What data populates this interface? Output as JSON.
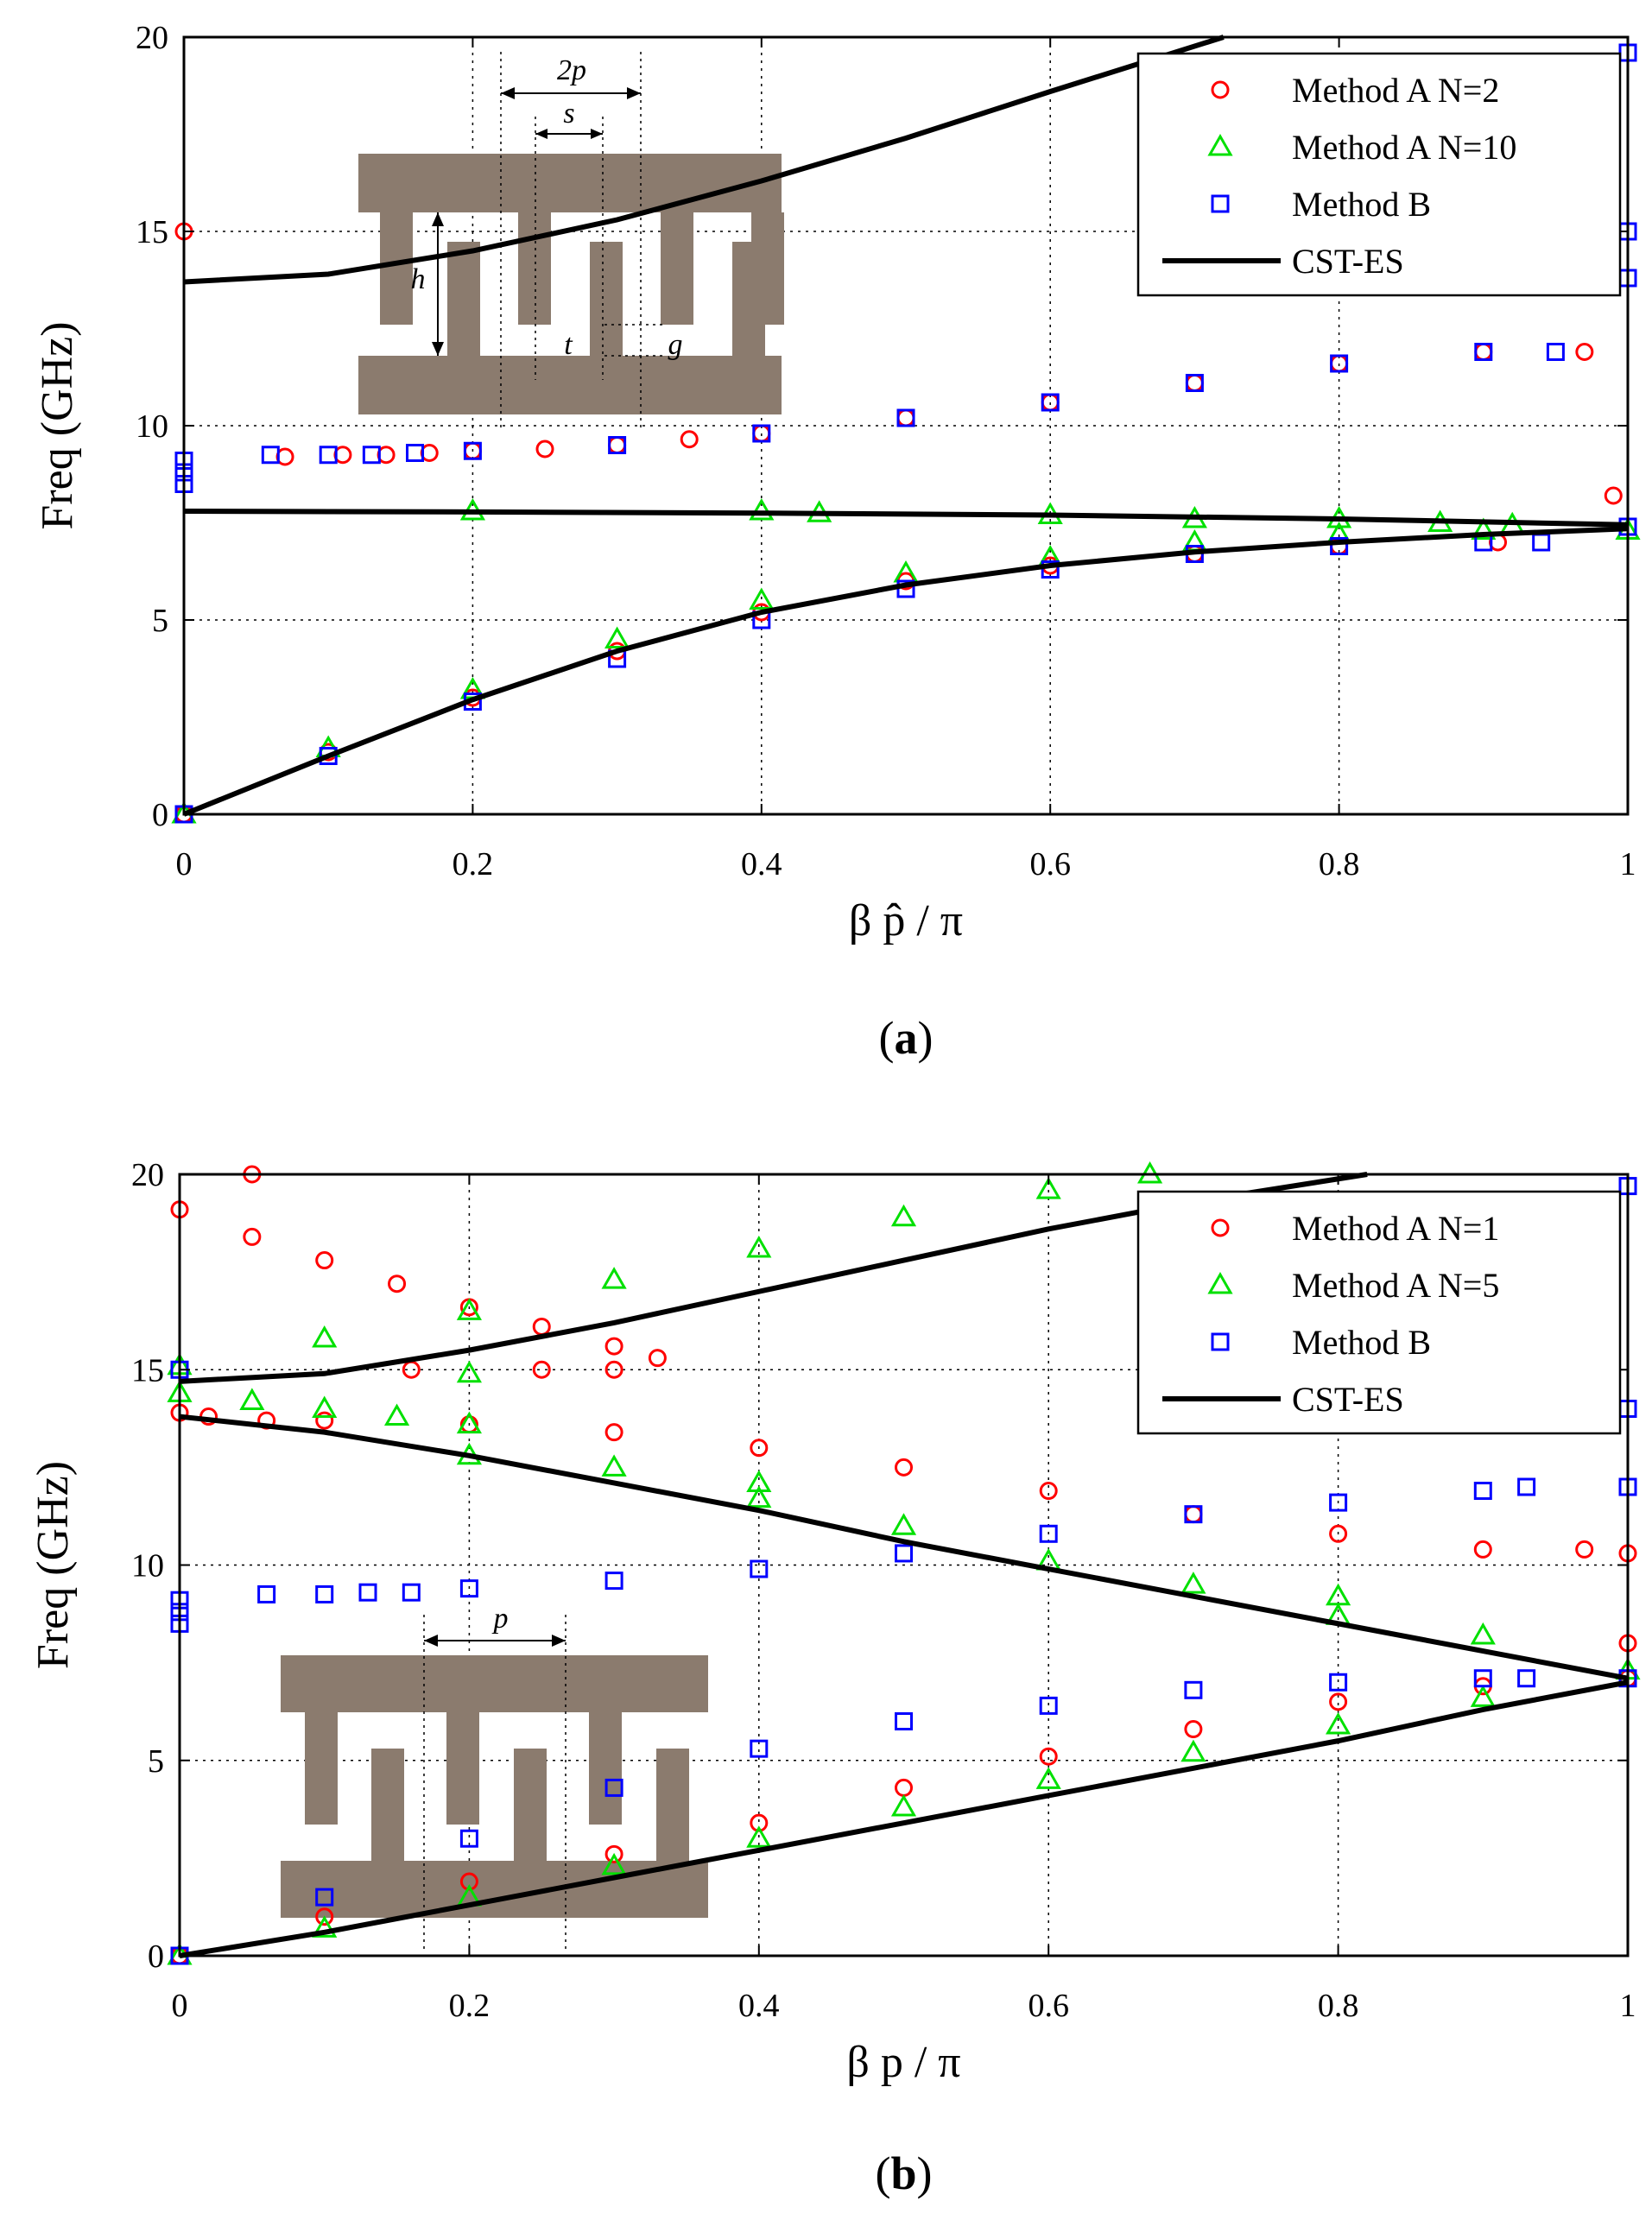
{
  "colors": {
    "method_a_1": "#ff0000",
    "method_a_2": "#00e000",
    "method_b": "#0000ff",
    "cst": "#000000",
    "structure": "#8b7b6e"
  },
  "chart_data": [
    {
      "type": "scatter",
      "panel": "a",
      "caption_label": "a",
      "xlabel": "β p̂ / π",
      "ylabel": "Freq (GHz)",
      "xlim": [
        0,
        1
      ],
      "ylim": [
        0,
        20
      ],
      "xticks": [
        0,
        0.2,
        0.4,
        0.6,
        0.8,
        1
      ],
      "xtick_labels": [
        "0",
        "0.2",
        "0.4",
        "0.6",
        "0.8",
        "1"
      ],
      "yticks": [
        0,
        5,
        10,
        15,
        20
      ],
      "ytick_labels": [
        "0",
        "5",
        "10",
        "15",
        "20"
      ],
      "grid": true,
      "legend_position": "top-right",
      "legend": [
        "Method A N=2",
        "Method A N=10",
        "Method B",
        "CST-ES"
      ],
      "inset_labels": {
        "period": "2p",
        "s": "s",
        "h": "h",
        "t": "t",
        "g": "g"
      },
      "series": [
        {
          "name": "Method A N=2",
          "marker": "circle",
          "color_key": "method_a_1",
          "x": [
            0.07,
            0.11,
            0.14,
            0.17,
            0.2,
            0.25,
            0.3,
            0.35,
            0.4,
            0.5,
            0.6,
            0.7,
            0.8,
            0.9,
            0.97,
            0.91,
            0.8,
            0.7,
            0.6,
            0.5,
            0.4,
            0.3,
            0.2,
            0.1,
            0.0,
            0.0,
            0.99
          ],
          "y": [
            9.2,
            9.25,
            9.25,
            9.3,
            9.35,
            9.4,
            9.5,
            9.65,
            9.8,
            10.2,
            10.6,
            11.1,
            11.6,
            11.9,
            11.9,
            7.0,
            6.9,
            6.7,
            6.4,
            6.0,
            5.2,
            4.2,
            3.0,
            1.6,
            0.0,
            15.0,
            8.2
          ]
        },
        {
          "name": "Method A N=10",
          "marker": "triangle",
          "color_key": "method_a_2",
          "x": [
            0.0,
            0.1,
            0.2,
            0.3,
            0.4,
            0.5,
            0.6,
            0.7,
            0.8,
            0.9,
            0.2,
            0.4,
            0.44,
            0.6,
            0.7,
            0.8,
            0.87,
            0.92,
            1.0
          ],
          "y": [
            0.0,
            1.7,
            3.2,
            4.5,
            5.5,
            6.2,
            6.6,
            7.0,
            7.2,
            7.3,
            7.8,
            7.8,
            7.75,
            7.7,
            7.6,
            7.6,
            7.5,
            7.45,
            7.3
          ]
        },
        {
          "name": "Method B",
          "marker": "square",
          "color_key": "method_b",
          "x": [
            0.0,
            0.0,
            0.0,
            0.06,
            0.1,
            0.13,
            0.16,
            0.2,
            0.3,
            0.4,
            0.5,
            0.6,
            0.7,
            0.8,
            0.9,
            0.95,
            0.0,
            0.1,
            0.2,
            0.3,
            0.4,
            0.5,
            0.6,
            0.7,
            0.8,
            0.9,
            0.94,
            1.0,
            1.0,
            1.0,
            1.0
          ],
          "y": [
            8.5,
            8.8,
            9.1,
            9.25,
            9.25,
            9.25,
            9.3,
            9.35,
            9.5,
            9.8,
            10.2,
            10.6,
            11.1,
            11.6,
            11.9,
            11.9,
            0.0,
            1.5,
            2.9,
            4.0,
            5.0,
            5.8,
            6.3,
            6.7,
            6.9,
            7.0,
            7.0,
            7.4,
            13.8,
            19.6,
            15.0
          ]
        },
        {
          "name": "CST-ES",
          "marker": "line",
          "color_key": "cst",
          "segments": [
            {
              "x": [
                0.0,
                0.1,
                0.2,
                0.3,
                0.4,
                0.5,
                0.6,
                0.72
              ],
              "y": [
                13.7,
                13.9,
                14.5,
                15.3,
                16.3,
                17.4,
                18.6,
                20.0
              ]
            },
            {
              "x": [
                0.0,
                0.2,
                0.4,
                0.6,
                0.8,
                1.0
              ],
              "y": [
                7.8,
                7.78,
                7.75,
                7.7,
                7.6,
                7.45
              ]
            },
            {
              "x": [
                0.0,
                0.1,
                0.2,
                0.3,
                0.4,
                0.5,
                0.6,
                0.7,
                0.8,
                0.9,
                1.0
              ],
              "y": [
                0.0,
                1.5,
                2.95,
                4.2,
                5.2,
                5.9,
                6.4,
                6.75,
                7.0,
                7.2,
                7.35
              ]
            }
          ]
        }
      ]
    },
    {
      "type": "scatter",
      "panel": "b",
      "caption_label": "b",
      "xlabel": "β p / π",
      "ylabel": "Freq (GHz)",
      "xlim": [
        0,
        1
      ],
      "ylim": [
        0,
        20
      ],
      "xticks": [
        0,
        0.2,
        0.4,
        0.6,
        0.8,
        1
      ],
      "xtick_labels": [
        "0",
        "0.2",
        "0.4",
        "0.6",
        "0.8",
        "1"
      ],
      "yticks": [
        0,
        5,
        10,
        15,
        20
      ],
      "ytick_labels": [
        "0",
        "5",
        "10",
        "15",
        "20"
      ],
      "grid": true,
      "legend_position": "top-right",
      "legend": [
        "Method A N=1",
        "Method A N=5",
        "Method B",
        "CST-ES"
      ],
      "inset_labels": {
        "period": "p"
      },
      "series": [
        {
          "name": "Method A N=1",
          "marker": "circle",
          "color_key": "method_a_1",
          "x": [
            0.05,
            0.0,
            0.05,
            0.1,
            0.15,
            0.2,
            0.25,
            0.3,
            0.33,
            0.3,
            0.25,
            0.16,
            0.0,
            0.02,
            0.06,
            0.1,
            0.2,
            0.3,
            0.4,
            0.5,
            0.6,
            0.7,
            0.8,
            0.9,
            0.97,
            1.0,
            1.0,
            0.0,
            0.1,
            0.2,
            0.3,
            0.4,
            0.5,
            0.6,
            0.7,
            0.8,
            0.9,
            1.0
          ],
          "y": [
            20.0,
            19.1,
            18.4,
            17.8,
            17.2,
            16.6,
            16.1,
            15.6,
            15.3,
            15.0,
            15.0,
            15.0,
            13.9,
            13.8,
            13.7,
            13.7,
            13.6,
            13.4,
            13.0,
            12.5,
            11.9,
            11.3,
            10.8,
            10.4,
            10.4,
            10.3,
            8.0,
            0.0,
            1.0,
            1.9,
            2.6,
            3.4,
            4.3,
            5.1,
            5.8,
            6.5,
            6.9,
            7.1
          ]
        },
        {
          "name": "Method A N=5",
          "marker": "triangle",
          "color_key": "method_a_2",
          "x": [
            0.0,
            0.1,
            0.2,
            0.3,
            0.4,
            0.5,
            0.6,
            0.67,
            0.0,
            0.05,
            0.1,
            0.15,
            0.2,
            0.2,
            0.2,
            0.3,
            0.4,
            0.4,
            0.5,
            0.6,
            0.7,
            0.8,
            0.8,
            0.9,
            1.0,
            0.0,
            0.1,
            0.2,
            0.3,
            0.4,
            0.5,
            0.6,
            0.7,
            0.8,
            0.9
          ],
          "y": [
            15.1,
            15.8,
            16.5,
            17.3,
            18.1,
            18.9,
            19.6,
            20.0,
            14.4,
            14.2,
            14.0,
            13.8,
            13.6,
            14.9,
            12.8,
            12.5,
            12.1,
            11.7,
            11.0,
            10.1,
            9.5,
            9.2,
            8.7,
            8.2,
            7.3,
            0.0,
            0.7,
            1.5,
            2.3,
            3.0,
            3.8,
            4.5,
            5.2,
            5.9,
            6.6
          ]
        },
        {
          "name": "Method B",
          "marker": "square",
          "color_key": "method_b",
          "x": [
            0.0,
            0.0,
            0.0,
            0.06,
            0.1,
            0.13,
            0.16,
            0.2,
            0.3,
            0.4,
            0.5,
            0.6,
            0.7,
            0.8,
            0.9,
            0.93,
            1.0,
            0.0,
            0.1,
            0.2,
            0.3,
            0.4,
            0.5,
            0.6,
            0.7,
            0.8,
            0.9,
            0.93,
            1.0,
            1.0,
            1.0,
            0.0
          ],
          "y": [
            8.5,
            8.8,
            9.1,
            9.25,
            9.25,
            9.3,
            9.3,
            9.4,
            9.6,
            9.9,
            10.3,
            10.8,
            11.3,
            11.6,
            11.9,
            12.0,
            12.0,
            0.0,
            1.5,
            3.0,
            4.3,
            5.3,
            6.0,
            6.4,
            6.8,
            7.0,
            7.1,
            7.1,
            7.1,
            14.0,
            19.7,
            15.0
          ]
        },
        {
          "name": "CST-ES",
          "marker": "line",
          "color_key": "cst",
          "segments": [
            {
              "x": [
                0.0,
                0.1,
                0.2,
                0.3,
                0.4,
                0.5,
                0.6,
                0.7,
                0.82
              ],
              "y": [
                14.7,
                14.9,
                15.5,
                16.2,
                17.0,
                17.8,
                18.6,
                19.3,
                20.0
              ]
            },
            {
              "x": [
                0.0,
                0.1,
                0.2,
                0.3,
                0.4,
                0.5,
                0.6,
                0.7,
                0.8,
                0.9,
                1.0
              ],
              "y": [
                13.8,
                13.4,
                12.8,
                12.1,
                11.4,
                10.6,
                9.9,
                9.2,
                8.5,
                7.8,
                7.1
              ]
            },
            {
              "x": [
                0.0,
                0.1,
                0.2,
                0.3,
                0.4,
                0.5,
                0.6,
                0.7,
                0.8,
                0.9,
                1.0
              ],
              "y": [
                0.0,
                0.6,
                1.3,
                2.0,
                2.7,
                3.4,
                4.1,
                4.8,
                5.5,
                6.3,
                7.0
              ]
            }
          ]
        }
      ]
    }
  ]
}
